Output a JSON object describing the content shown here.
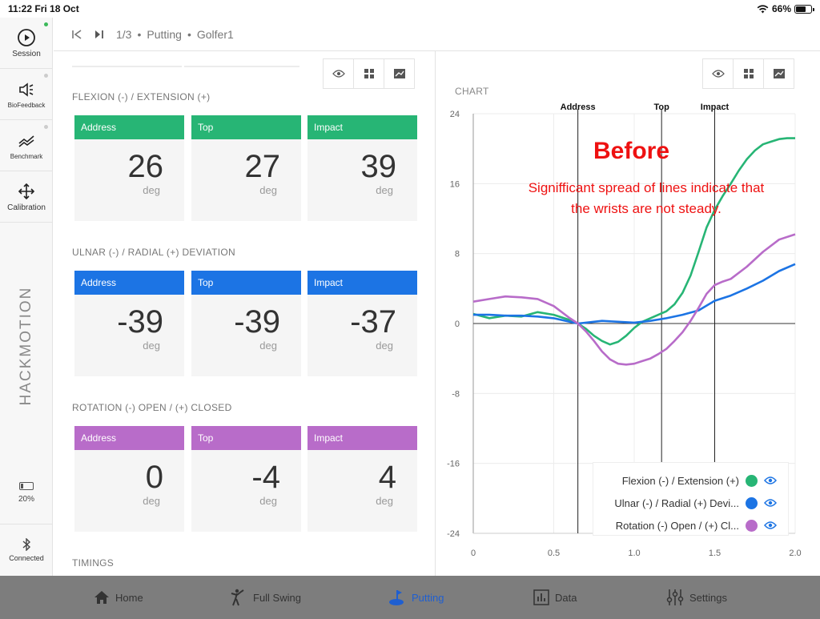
{
  "status": {
    "time": "11:22",
    "date": "Fri 18 Oct",
    "battery": "66%",
    "battery_level": 0.66
  },
  "sidebar": {
    "session": "Session",
    "biofeedback": "BioFeedback",
    "benchmark": "Benchmark",
    "calibration": "Calibration",
    "brand": "HACKMOTION",
    "battery": "20%",
    "battery_level": 0.2,
    "connected": "Connected"
  },
  "header": {
    "position": "1/3",
    "sep1": "•",
    "mode": "Putting",
    "sep2": "•",
    "golfer": "Golfer1"
  },
  "sections": [
    {
      "title": "FLEXION (-) / EXTENSION (+)",
      "color": "#27b575",
      "cards": [
        {
          "label": "Address",
          "value": "26",
          "unit": "deg"
        },
        {
          "label": "Top",
          "value": "27",
          "unit": "deg"
        },
        {
          "label": "Impact",
          "value": "39",
          "unit": "deg"
        }
      ]
    },
    {
      "title": "ULNAR (-) / RADIAL (+) DEVIATION",
      "color": "#1c74e4",
      "cards": [
        {
          "label": "Address",
          "value": "-39",
          "unit": "deg"
        },
        {
          "label": "Top",
          "value": "-39",
          "unit": "deg"
        },
        {
          "label": "Impact",
          "value": "-37",
          "unit": "deg"
        }
      ]
    },
    {
      "title": "ROTATION (-) OPEN / (+) CLOSED",
      "color": "#b86cc9",
      "cards": [
        {
          "label": "Address",
          "value": "0",
          "unit": "deg"
        },
        {
          "label": "Top",
          "value": "-4",
          "unit": "deg"
        },
        {
          "label": "Impact",
          "value": "4",
          "unit": "deg"
        }
      ]
    }
  ],
  "timings_title": "TIMINGS",
  "chart_title": "CHART",
  "annotation": {
    "title": "Before",
    "body": "Signifficant spread of lines indicate that the wrists are not steady."
  },
  "legend": [
    {
      "label": "Flexion (-) / Extension (+)",
      "color": "#27b575"
    },
    {
      "label": "Ulnar (-) / Radial (+) Devi...",
      "color": "#1c74e4"
    },
    {
      "label": "Rotation (-) Open / (+) Cl...",
      "color": "#b86cc9"
    }
  ],
  "tabs": [
    {
      "label": "Home",
      "icon": "home-icon"
    },
    {
      "label": "Full Swing",
      "icon": "golfer-icon"
    },
    {
      "label": "Putting",
      "icon": "putting-icon",
      "active": true
    },
    {
      "label": "Data",
      "icon": "data-icon"
    },
    {
      "label": "Settings",
      "icon": "settings-sliders-icon"
    }
  ],
  "chart_data": {
    "type": "line",
    "xlim": [
      0,
      2.0
    ],
    "ylim": [
      -24,
      24
    ],
    "x_ticks": [
      "0",
      "0.5",
      "1.0",
      "1.5",
      "2.0"
    ],
    "y_ticks": [
      "24",
      "16",
      "8",
      "0",
      "-8",
      "-16",
      "-24"
    ],
    "events": [
      {
        "label": "Address",
        "x": 0.65
      },
      {
        "label": "Top",
        "x": 1.17
      },
      {
        "label": "Impact",
        "x": 1.5
      }
    ],
    "series": [
      {
        "name": "Flexion (-) / Extension (+)",
        "color": "#27b575",
        "points": [
          [
            0,
            1.1
          ],
          [
            0.1,
            0.6
          ],
          [
            0.2,
            0.9
          ],
          [
            0.3,
            0.8
          ],
          [
            0.4,
            1.3
          ],
          [
            0.5,
            1.0
          ],
          [
            0.6,
            0.4
          ],
          [
            0.65,
            0
          ],
          [
            0.7,
            -0.6
          ],
          [
            0.75,
            -1.4
          ],
          [
            0.8,
            -2.0
          ],
          [
            0.85,
            -2.4
          ],
          [
            0.9,
            -2.1
          ],
          [
            0.95,
            -1.4
          ],
          [
            1.0,
            -0.5
          ],
          [
            1.05,
            0.2
          ],
          [
            1.1,
            0.6
          ],
          [
            1.15,
            1.0
          ],
          [
            1.2,
            1.4
          ],
          [
            1.25,
            2.2
          ],
          [
            1.3,
            3.5
          ],
          [
            1.35,
            5.5
          ],
          [
            1.4,
            8.2
          ],
          [
            1.45,
            11.0
          ],
          [
            1.5,
            13.0
          ],
          [
            1.55,
            14.6
          ],
          [
            1.6,
            16.0
          ],
          [
            1.65,
            17.5
          ],
          [
            1.7,
            18.8
          ],
          [
            1.75,
            19.8
          ],
          [
            1.8,
            20.5
          ],
          [
            1.85,
            20.8
          ],
          [
            1.9,
            21.1
          ],
          [
            1.95,
            21.2
          ],
          [
            2.0,
            21.2
          ]
        ]
      },
      {
        "name": "Ulnar (-) / Radial (+) Deviation",
        "color": "#1c74e4",
        "points": [
          [
            0,
            1.0
          ],
          [
            0.1,
            1.0
          ],
          [
            0.2,
            0.9
          ],
          [
            0.3,
            0.9
          ],
          [
            0.4,
            0.8
          ],
          [
            0.5,
            0.6
          ],
          [
            0.6,
            0.2
          ],
          [
            0.65,
            0
          ],
          [
            0.7,
            0.1
          ],
          [
            0.8,
            0.3
          ],
          [
            0.9,
            0.2
          ],
          [
            1.0,
            0.1
          ],
          [
            1.1,
            0.3
          ],
          [
            1.2,
            0.6
          ],
          [
            1.3,
            1.0
          ],
          [
            1.4,
            1.5
          ],
          [
            1.5,
            2.6
          ],
          [
            1.6,
            3.2
          ],
          [
            1.7,
            4.0
          ],
          [
            1.8,
            4.9
          ],
          [
            1.9,
            6.0
          ],
          [
            2.0,
            6.8
          ]
        ]
      },
      {
        "name": "Rotation (-) Open / (+) Closed",
        "color": "#b86cc9",
        "points": [
          [
            0,
            2.5
          ],
          [
            0.1,
            2.8
          ],
          [
            0.2,
            3.1
          ],
          [
            0.3,
            3.0
          ],
          [
            0.4,
            2.8
          ],
          [
            0.5,
            2.0
          ],
          [
            0.6,
            0.6
          ],
          [
            0.65,
            0
          ],
          [
            0.7,
            -0.9
          ],
          [
            0.75,
            -2.0
          ],
          [
            0.8,
            -3.2
          ],
          [
            0.85,
            -4.1
          ],
          [
            0.9,
            -4.6
          ],
          [
            0.95,
            -4.7
          ],
          [
            1.0,
            -4.6
          ],
          [
            1.05,
            -4.3
          ],
          [
            1.1,
            -4.0
          ],
          [
            1.15,
            -3.5
          ],
          [
            1.2,
            -2.9
          ],
          [
            1.25,
            -2.0
          ],
          [
            1.3,
            -1.0
          ],
          [
            1.35,
            0.3
          ],
          [
            1.4,
            1.8
          ],
          [
            1.45,
            3.4
          ],
          [
            1.5,
            4.4
          ],
          [
            1.55,
            4.8
          ],
          [
            1.6,
            5.1
          ],
          [
            1.7,
            6.5
          ],
          [
            1.8,
            8.2
          ],
          [
            1.9,
            9.6
          ],
          [
            2.0,
            10.2
          ]
        ]
      }
    ]
  }
}
